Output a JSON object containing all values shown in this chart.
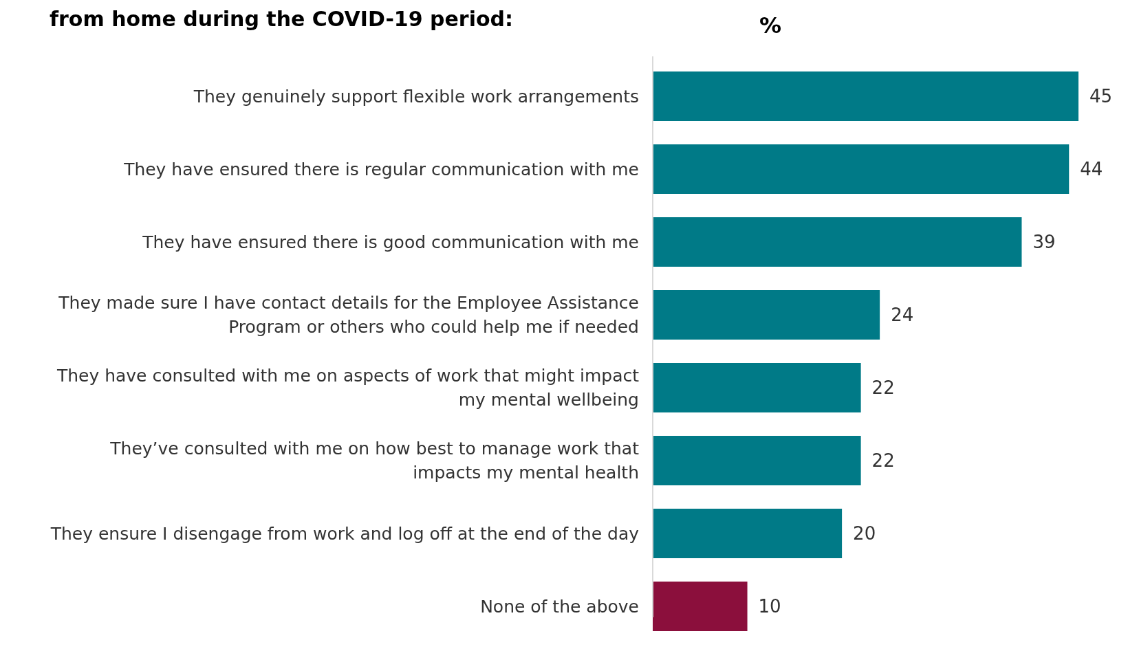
{
  "chart_data": {
    "type": "bar",
    "orientation": "horizontal",
    "title": "from home during the COVID-19 period:",
    "xlabel": "%",
    "categories": [
      "They genuinely support flexible work arrangements",
      "They have ensured there is regular communication with me",
      "They have ensured there is good communication with me",
      "They made sure I have contact details for the Employee Assistance\nProgram or others who could help me if needed",
      "They have consulted with me on aspects of work that might impact\nmy mental wellbeing",
      "They’ve consulted with me on how best to manage work that\nimpacts my mental health",
      "They ensure I disengage from work and log off at the end of the day",
      "None of the above"
    ],
    "values": [
      45,
      44,
      39,
      24,
      22,
      22,
      20,
      10
    ],
    "colors": [
      "#007a87",
      "#007a87",
      "#007a87",
      "#007a87",
      "#007a87",
      "#007a87",
      "#007a87",
      "#8b0f3c"
    ],
    "data_labels": true
  }
}
